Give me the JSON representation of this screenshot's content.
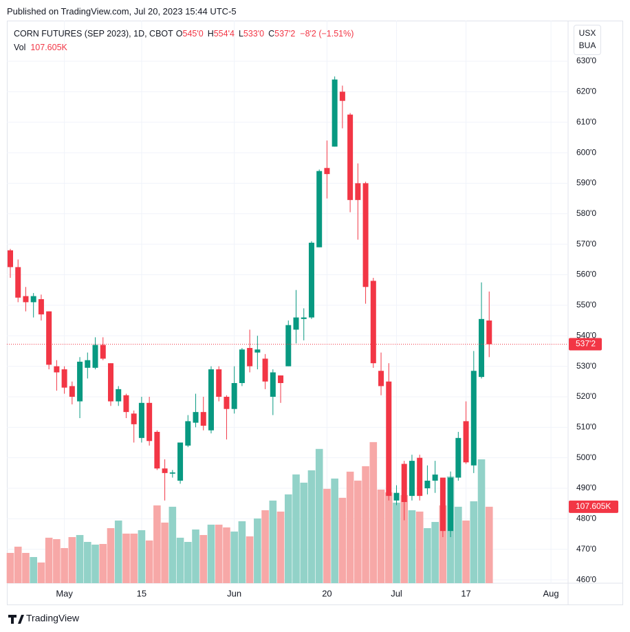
{
  "published": "Published on TradingView.com, Jul 20, 2023 15:44 UTC-5",
  "header": {
    "symbol": "CORN FUTURES (SEP 2023), 1D, CBOT",
    "ohlc": [
      {
        "key": "O",
        "value": "545'0"
      },
      {
        "key": "H",
        "value": "554'4"
      },
      {
        "key": "L",
        "value": "533'0"
      },
      {
        "key": "C",
        "value": "537'2"
      }
    ],
    "change": "−8'2 (−1.51%)",
    "vol_key": "Vol",
    "vol_value": "107.605K"
  },
  "currency": [
    "USX",
    "BUA"
  ],
  "footer": "TradingView",
  "chart_data": {
    "type": "candlestick",
    "categories": [
      null,
      null,
      null,
      null,
      null,
      null,
      null,
      "May",
      null,
      null,
      null,
      null,
      null,
      null,
      null,
      null,
      null,
      "15",
      null,
      null,
      null,
      null,
      null,
      null,
      null,
      null,
      null,
      null,
      null,
      "Jun",
      null,
      null,
      null,
      null,
      null,
      null,
      null,
      null,
      null,
      null,
      null,
      "20",
      null,
      null,
      null,
      null,
      null,
      null,
      null,
      null,
      "Jul",
      null,
      null,
      null,
      null,
      null,
      null,
      null,
      null,
      "17",
      null,
      null,
      null,
      null,
      null,
      null,
      null,
      null,
      null,
      null,
      "Aug"
    ],
    "open": [
      568,
      562.5,
      553,
      551,
      552,
      548,
      530,
      529,
      523.5,
      518.5,
      529.5,
      529.5,
      537,
      531,
      518.5,
      520.5,
      514.5,
      506.5,
      518,
      508.5,
      496.5,
      494.8,
      492.5,
      504,
      511.5,
      515,
      509,
      529,
      520,
      516,
      524.5,
      536,
      534.5,
      532.5,
      520,
      527,
      530,
      542,
      545.5,
      546,
      569,
      595,
      602,
      620,
      612.5,
      590,
      590,
      558,
      528.5,
      525,
      486,
      498,
      487.5,
      500,
      490,
      492.5,
      493.5,
      476,
      493.5,
      512,
      497.5,
      526.5,
      545,
      null,
      null,
      null,
      null,
      null,
      null,
      null,
      null
    ],
    "high": [
      568.5,
      565,
      556,
      554,
      553.5,
      548,
      532,
      530,
      525,
      533,
      534.5,
      539.5,
      539.5,
      531,
      523.5,
      521,
      515.5,
      520,
      520,
      509,
      499.5,
      496,
      505,
      514,
      521,
      520,
      530,
      530,
      520.5,
      530,
      536,
      542,
      540,
      534,
      529,
      527,
      545,
      555,
      549,
      571,
      594.5,
      604,
      625,
      622,
      613,
      596.5,
      590.5,
      559,
      534.5,
      531,
      491,
      499,
      501,
      501,
      497.5,
      499,
      493.5,
      495.5,
      508.5,
      518.5,
      535,
      557.5,
      554.5,
      null,
      null,
      null,
      null,
      null,
      null,
      null,
      null
    ],
    "low": [
      559,
      551,
      548,
      546,
      545,
      529,
      522,
      521,
      517.5,
      513,
      526,
      529,
      532,
      517,
      517,
      513,
      505,
      505,
      504,
      496,
      486,
      493.5,
      491.5,
      503.5,
      510,
      509,
      508,
      518.5,
      506,
      514.5,
      523.5,
      528,
      529,
      522.5,
      514,
      518,
      530,
      537.5,
      538.5,
      545.5,
      569,
      585,
      602,
      608,
      580.5,
      571.5,
      550.5,
      529.5,
      520.5,
      486,
      484.5,
      479.5,
      486,
      486,
      488,
      488.5,
      474,
      474,
      492.5,
      498,
      495,
      526,
      533,
      null,
      null,
      null,
      null,
      null,
      null,
      null,
      null
    ],
    "close": [
      562.5,
      552.5,
      551,
      553,
      547,
      530.5,
      528,
      523,
      520,
      531.5,
      532,
      537,
      532.5,
      518.5,
      522.5,
      515,
      511,
      518,
      505.5,
      496.5,
      495,
      495.2,
      505,
      512,
      515,
      510.5,
      529,
      520,
      516,
      524.5,
      535.5,
      530,
      535.5,
      525,
      528,
      524.5,
      543.5,
      546,
      546,
      570.5,
      594,
      593,
      624,
      617,
      584.5,
      584.5,
      556,
      531,
      523.5,
      487.5,
      488.5,
      485.5,
      499,
      487.5,
      492.5,
      494.5,
      476,
      493.5,
      506.5,
      498.5,
      528.5,
      545.5,
      537.25,
      null,
      null,
      null,
      null,
      null,
      null,
      null,
      null
    ],
    "volume": [
      42600,
      51400,
      42600,
      36800,
      29100,
      64000,
      62000,
      49400,
      64900,
      67800,
      58100,
      54300,
      55200,
      77500,
      88200,
      69800,
      69800,
      74600,
      60100,
      109500,
      85300,
      107600,
      64000,
      58100,
      75600,
      67800,
      82400,
      82400,
      78500,
      72700,
      87200,
      65900,
      91100,
      102700,
      116300,
      100800,
      125000,
      153100,
      141500,
      158900,
      189000,
      132800,
      147300,
      120200,
      157000,
      144400,
      164700,
      198600,
      131800,
      127900,
      113400,
      124000,
      102700,
      100800,
      77500,
      86200,
      109500,
      150200,
      107600,
      88200,
      115300,
      174400,
      107605,
      null,
      null,
      null,
      null,
      null,
      null,
      null,
      null
    ],
    "up_color": "#089981",
    "down_color": "#f23645",
    "up_volume_color": "#92d2c8",
    "down_volume_color": "#f7a8a7",
    "ylim": [
      458.9,
      643.3
    ],
    "yticks": [
      {
        "value": 460,
        "label": "460'0"
      },
      {
        "value": 470,
        "label": "470'0"
      },
      {
        "value": 480,
        "label": "480'0"
      },
      {
        "value": 490,
        "label": "490'0"
      },
      {
        "value": 500,
        "label": "500'0"
      },
      {
        "value": 510,
        "label": "510'0"
      },
      {
        "value": 520,
        "label": "520'0"
      },
      {
        "value": 530,
        "label": "530'0"
      },
      {
        "value": 540,
        "label": "540'0"
      },
      {
        "value": 550,
        "label": "550'0"
      },
      {
        "value": 560,
        "label": "560'0"
      },
      {
        "value": 570,
        "label": "570'0"
      },
      {
        "value": 580,
        "label": "580'0"
      },
      {
        "value": 590,
        "label": "590'0"
      },
      {
        "value": 600,
        "label": "600'0"
      },
      {
        "value": 610,
        "label": "610'0"
      },
      {
        "value": 620,
        "label": "620'0"
      },
      {
        "value": 630,
        "label": "630'0"
      }
    ],
    "y2lim": [
      0,
      792000
    ],
    "last_price": {
      "value": 537.25,
      "label": "537'2"
    },
    "last_volume": {
      "value": 107605,
      "label": "107.605K"
    },
    "grid": true
  }
}
